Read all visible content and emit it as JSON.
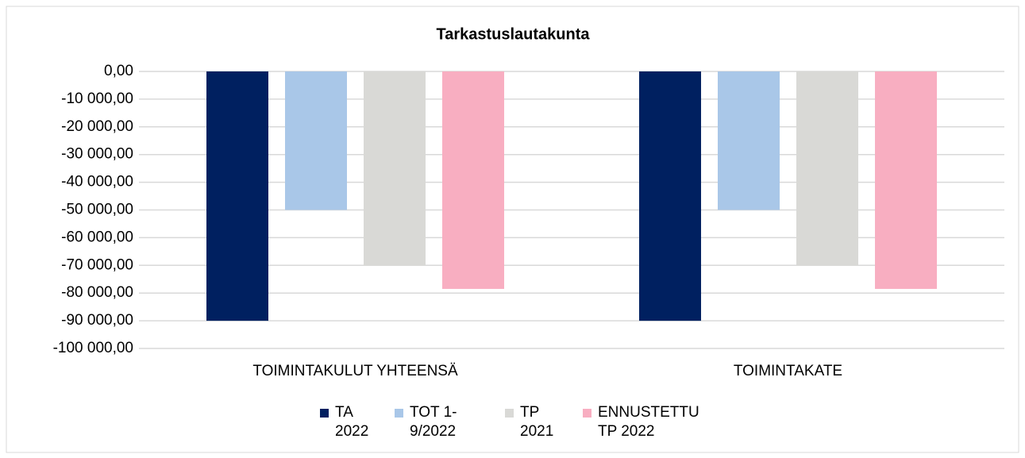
{
  "chart_data": {
    "type": "bar",
    "title": "Tarkastuslautakunta",
    "categories": [
      "TOIMINTAKULUT YHTEENSÄ",
      "TOIMINTAKATE"
    ],
    "series": [
      {
        "name": "TA 2022",
        "color": "#002060",
        "values": [
          -90000,
          -90000
        ]
      },
      {
        "name": "TOT 1-9/2022",
        "color": "#a9c7e8",
        "values": [
          -50000,
          -50000
        ]
      },
      {
        "name": "TP 2021",
        "color": "#d9d9d6",
        "values": [
          -70000,
          -70000
        ]
      },
      {
        "name": "ENNUSTETTU TP 2022",
        "color": "#f8aec1",
        "values": [
          -78500,
          -78500
        ]
      }
    ],
    "ylim": [
      -100000,
      0
    ],
    "yticks": [
      {
        "value": 0,
        "label": "0,00"
      },
      {
        "value": -10000,
        "label": "-10 000,00"
      },
      {
        "value": -20000,
        "label": "-20 000,00"
      },
      {
        "value": -30000,
        "label": "-30 000,00"
      },
      {
        "value": -40000,
        "label": "-40 000,00"
      },
      {
        "value": -50000,
        "label": "-50 000,00"
      },
      {
        "value": -60000,
        "label": "-60 000,00"
      },
      {
        "value": -70000,
        "label": "-70 000,00"
      },
      {
        "value": -80000,
        "label": "-80 000,00"
      },
      {
        "value": -90000,
        "label": "-90 000,00"
      },
      {
        "value": -100000,
        "label": "-100 000,00"
      }
    ],
    "grid": true,
    "legend": "bottom"
  }
}
